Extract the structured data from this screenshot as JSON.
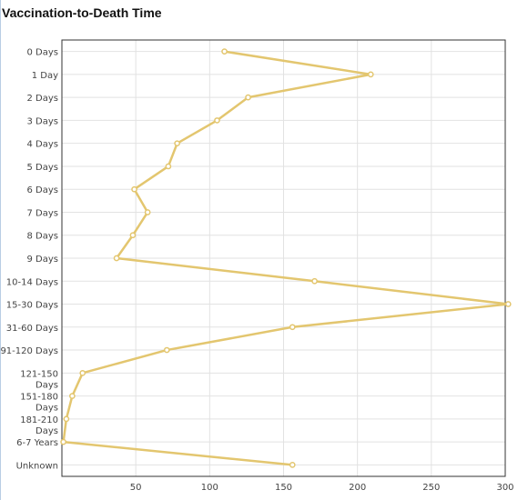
{
  "title": "Vaccination-to-Death Time",
  "chart_data": {
    "type": "line",
    "orientation": "horizontal",
    "title": "Vaccination-to-Death Time",
    "categories": [
      [
        "0 Days"
      ],
      [
        "1 Day"
      ],
      [
        "2 Days"
      ],
      [
        "3 Days"
      ],
      [
        "4 Days"
      ],
      [
        "5 Days"
      ],
      [
        "6 Days"
      ],
      [
        "7 Days"
      ],
      [
        "8 Days"
      ],
      [
        "9 Days"
      ],
      [
        "10-14 Days"
      ],
      [
        "15-30 Days"
      ],
      [
        "31-60 Days"
      ],
      [
        "91-120 Days"
      ],
      [
        "121-150",
        "Days"
      ],
      [
        "151-180",
        "Days"
      ],
      [
        "181-210",
        "Days"
      ],
      [
        "6-7 Years"
      ],
      [
        "Unknown"
      ]
    ],
    "values": [
      110,
      209,
      126,
      105,
      78,
      72,
      49,
      58,
      48,
      37,
      171,
      302,
      156,
      71,
      14,
      7,
      3,
      1,
      156
    ],
    "xlim": [
      0,
      300
    ],
    "xticks": [
      50,
      100,
      150,
      200,
      250,
      300
    ],
    "grid": true,
    "legend": "none",
    "series_color": "#e3c66f"
  }
}
